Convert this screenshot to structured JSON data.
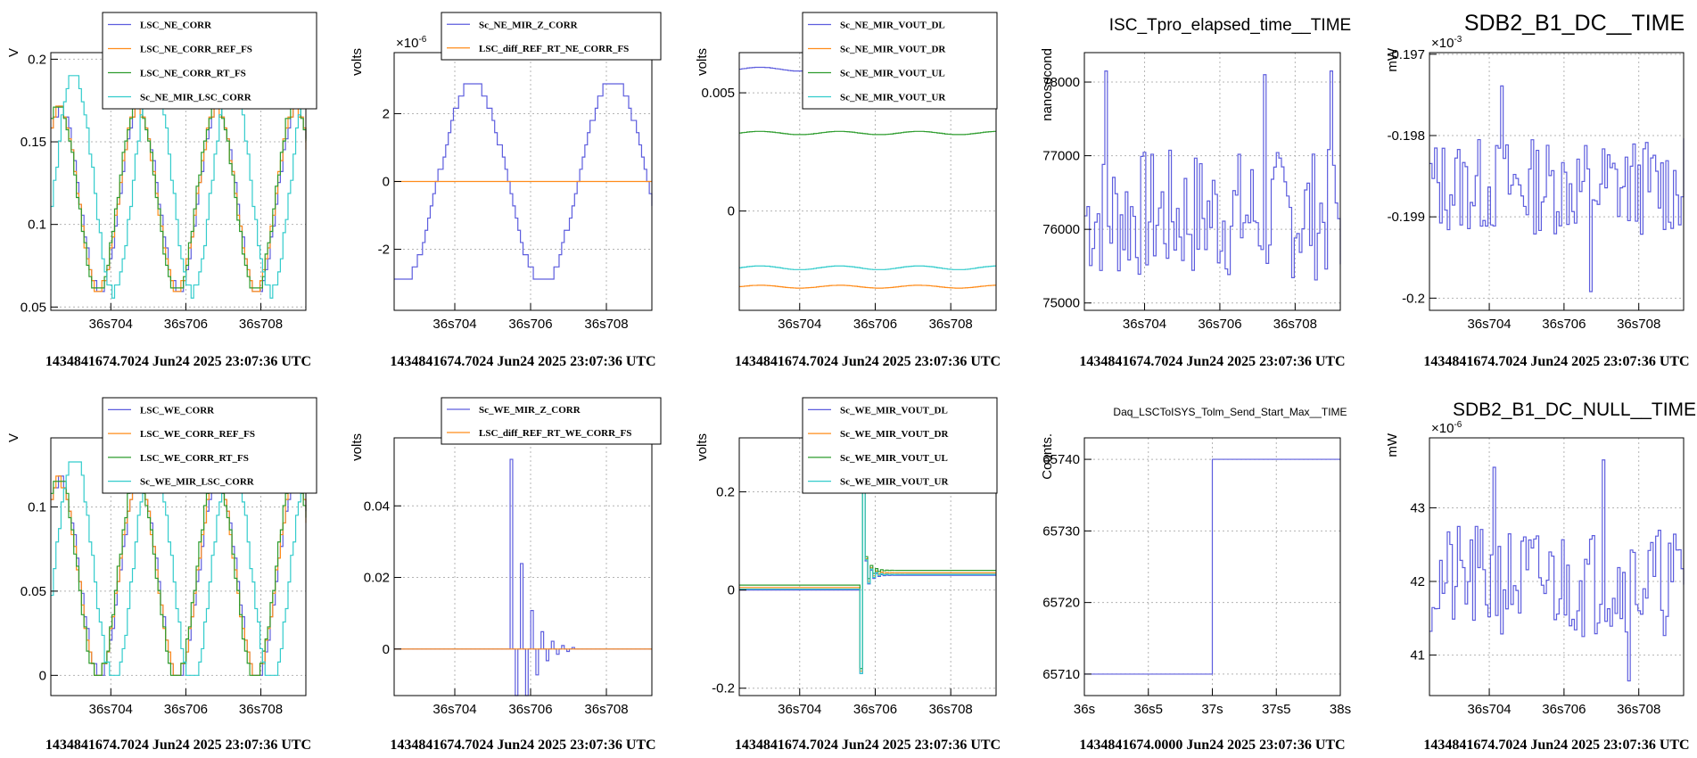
{
  "colors": {
    "blue": "#5d5dde",
    "orange": "#ff8c1a",
    "green": "#2d9c2d",
    "cyan": "#33cccc",
    "grid": "#b4b4b4"
  },
  "chart_data": [
    {
      "id": "p00",
      "type": "line",
      "step": true,
      "title": "",
      "ylabel": "V",
      "exponent": "",
      "xticks": [
        "36s704",
        "36s706",
        "36s708"
      ],
      "yticks": [
        {
          "v": 0.05,
          "t": "0.05"
        },
        {
          "v": 0.1,
          "t": "0.1"
        },
        {
          "v": 0.15,
          "t": "0.15"
        },
        {
          "v": 0.2,
          "t": "0.2"
        }
      ],
      "xlim": [
        36.7024,
        36.7092
      ],
      "ylim": [
        0.048,
        0.204
      ],
      "footer": "1434841674.7024 Jun24 2025 23:07:36 UTC",
      "series": [
        {
          "name": "LSC_NE_CORR",
          "color": "#5d5dde",
          "gen": {
            "kind": "sine",
            "base": 0.115,
            "amp": 0.055,
            "period": 0.0021,
            "phase": 0.9,
            "n": 100
          }
        },
        {
          "name": "LSC_NE_CORR_REF_FS",
          "color": "#ff8c1a",
          "gen": {
            "kind": "sine",
            "base": 0.115,
            "amp": 0.055,
            "period": 0.0021,
            "phase": 1.0,
            "n": 100
          }
        },
        {
          "name": "LSC_NE_CORR_RT_FS",
          "color": "#2d9c2d",
          "gen": {
            "kind": "sine",
            "base": 0.116,
            "amp": 0.057,
            "period": 0.0021,
            "phase": 1.05,
            "n": 100
          }
        },
        {
          "name": "Sc_NE_MIR_LSC_CORR",
          "color": "#33cccc",
          "gen": {
            "kind": "sine",
            "base": 0.125,
            "amp": 0.066,
            "period": 0.0021,
            "phase": -0.2,
            "n": 100
          }
        }
      ]
    },
    {
      "id": "p01",
      "type": "line",
      "step": true,
      "title": "",
      "ylabel": "volts",
      "exponent": "×10",
      "exponent_power": "-6",
      "xticks": [
        "36s704",
        "36s706",
        "36s708"
      ],
      "yticks": [
        {
          "v": -2,
          "t": "-2"
        },
        {
          "v": 0,
          "t": "0"
        },
        {
          "v": 2,
          "t": "2"
        }
      ],
      "xlim": [
        36.7024,
        36.7092
      ],
      "ylim": [
        -3.8,
        3.8
      ],
      "footer": "1434841674.7024 Jun24 2025 23:07:36 UTC",
      "series": [
        {
          "name": "Sc_NE_MIR_Z_CORR",
          "color": "#5d5dde",
          "gen": {
            "kind": "sine",
            "base": 0,
            "amp": 3.0,
            "period": 0.0037,
            "phase": -1.9,
            "n": 100
          }
        },
        {
          "name": "LSC_diff_REF_RT_NE_CORR_FS",
          "color": "#ff8c1a",
          "gen": {
            "kind": "const",
            "value": 0
          }
        }
      ]
    },
    {
      "id": "p02",
      "type": "line",
      "step": true,
      "title": "",
      "ylabel": "volts",
      "exponent": "",
      "xticks": [
        "36s704",
        "36s706",
        "36s708"
      ],
      "yticks": [
        {
          "v": 0,
          "t": "0"
        },
        {
          "v": 0.005,
          "t": "0.005"
        }
      ],
      "xlim": [
        36.7024,
        36.7092
      ],
      "ylim": [
        -0.0042,
        0.0067
      ],
      "footer": "1434841674.7024 Jun24 2025 23:07:36 UTC",
      "series": [
        {
          "name": "Sc_NE_MIR_VOUT_DL",
          "color": "#5d5dde",
          "gen": {
            "kind": "sine",
            "base": 0.006,
            "amp": 8e-05,
            "period": 0.0021,
            "phase": 0,
            "n": 100
          }
        },
        {
          "name": "Sc_NE_MIR_VOUT_DR",
          "color": "#ff8c1a",
          "gen": {
            "kind": "sine",
            "base": -0.0032,
            "amp": 6e-05,
            "period": 0.0021,
            "phase": 0,
            "n": 100
          }
        },
        {
          "name": "Sc_NE_MIR_VOUT_UL",
          "color": "#2d9c2d",
          "gen": {
            "kind": "sine",
            "base": 0.0033,
            "amp": 7e-05,
            "period": 0.0021,
            "phase": 0,
            "n": 100
          }
        },
        {
          "name": "Sc_NE_MIR_VOUT_UR",
          "color": "#33cccc",
          "gen": {
            "kind": "sine",
            "base": -0.0024,
            "amp": 8e-05,
            "period": 0.0021,
            "phase": 0,
            "n": 100
          }
        }
      ]
    },
    {
      "id": "p03",
      "type": "line",
      "step": true,
      "title": "ISC_Tpro_elapsed_time__TIME",
      "title_size": 19,
      "ylabel": "nanosecond",
      "exponent": "",
      "xticks": [
        "36s704",
        "36s706",
        "36s708"
      ],
      "yticks": [
        {
          "v": 75000,
          "t": "75000"
        },
        {
          "v": 76000,
          "t": "76000"
        },
        {
          "v": 77000,
          "t": "77000"
        },
        {
          "v": 78000,
          "t": "78000"
        }
      ],
      "xlim": [
        36.7024,
        36.7092
      ],
      "ylim": [
        74900,
        78400
      ],
      "footer": "1434841674.7024 Jun24 2025 23:07:36 UTC",
      "series": [
        {
          "name": "",
          "color": "#5d5dde",
          "gen": {
            "kind": "noise",
            "base": 76200,
            "amp": 900,
            "n": 100,
            "seed": 7,
            "spikes": [
              [
                8,
                78150
              ],
              [
                70,
                78100
              ],
              [
                96,
                78150
              ]
            ]
          }
        }
      ]
    },
    {
      "id": "p04",
      "type": "line",
      "step": true,
      "title": "SDB2_B1_DC__TIME",
      "title_size": 25,
      "ylabel": "mW",
      "exponent": "×10",
      "exponent_power": "-3",
      "xticks": [
        "36s704",
        "36s706",
        "36s708"
      ],
      "yticks": [
        {
          "v": -0.2,
          "t": "-0.2"
        },
        {
          "v": -0.199,
          "t": "-0.199"
        },
        {
          "v": -0.198,
          "t": "-0.198"
        },
        {
          "v": -0.197,
          "t": "-0.197"
        }
      ],
      "xlim": [
        36.7024,
        36.7092
      ],
      "ylim": [
        -0.20015,
        -0.19698
      ],
      "footer": "1434841674.7024 Jun24 2025 23:07:36 UTC",
      "series": [
        {
          "name": "",
          "color": "#5d5dde",
          "gen": {
            "kind": "noise",
            "base": -0.19862,
            "amp": 0.0006,
            "n": 100,
            "seed": 13,
            "spikes": [
              [
                28,
                -0.19739
              ],
              [
                63,
                -0.19992
              ]
            ]
          }
        }
      ]
    },
    {
      "id": "p10",
      "type": "line",
      "step": true,
      "title": "",
      "ylabel": "V",
      "exponent": "",
      "xticks": [
        "36s704",
        "36s706",
        "36s708"
      ],
      "yticks": [
        {
          "v": 0,
          "t": "0"
        },
        {
          "v": 0.05,
          "t": "0.05"
        },
        {
          "v": 0.1,
          "t": "0.1"
        }
      ],
      "xlim": [
        36.7024,
        36.7092
      ],
      "ylim": [
        -0.012,
        0.141
      ],
      "footer": "1434841674.7024 Jun24 2025 23:07:36 UTC",
      "series": [
        {
          "name": "LSC_WE_CORR",
          "color": "#5d5dde",
          "gen": {
            "kind": "sine",
            "base": 0.058,
            "amp": 0.058,
            "period": 0.0021,
            "phase": 0.9,
            "n": 100
          }
        },
        {
          "name": "LSC_WE_CORR_REF_FS",
          "color": "#ff8c1a",
          "gen": {
            "kind": "sine",
            "base": 0.058,
            "amp": 0.058,
            "period": 0.0021,
            "phase": 1.0,
            "n": 100
          }
        },
        {
          "name": "LSC_WE_CORR_RT_FS",
          "color": "#2d9c2d",
          "gen": {
            "kind": "sine",
            "base": 0.059,
            "amp": 0.06,
            "period": 0.0021,
            "phase": 1.05,
            "n": 100
          }
        },
        {
          "name": "Sc_WE_MIR_LSC_CORR",
          "color": "#33cccc",
          "gen": {
            "kind": "sine",
            "base": 0.064,
            "amp": 0.066,
            "period": 0.0021,
            "phase": -0.2,
            "n": 100
          }
        }
      ]
    },
    {
      "id": "p11",
      "type": "line",
      "step": true,
      "title": "",
      "ylabel": "volts",
      "exponent": "",
      "xticks": [
        "36s704",
        "36s706",
        "36s708"
      ],
      "yticks": [
        {
          "v": 0,
          "t": "0"
        },
        {
          "v": 0.02,
          "t": "0.02"
        },
        {
          "v": 0.04,
          "t": "0.04"
        }
      ],
      "xlim": [
        36.7024,
        36.7092
      ],
      "ylim": [
        -0.013,
        0.059
      ],
      "footer": "1434841674.7024 Jun24 2025 23:07:36 UTC",
      "series": [
        {
          "name": "Sc_WE_MIR_Z_CORR",
          "color": "#5d5dde",
          "gen": {
            "kind": "burst",
            "n": 100,
            "start": 45,
            "peak": 0.053,
            "decay": 0.55,
            "period": 3
          }
        },
        {
          "name": "LSC_diff_REF_RT_WE_CORR_FS",
          "color": "#ff8c1a",
          "gen": {
            "kind": "const",
            "value": 0
          }
        }
      ]
    },
    {
      "id": "p12",
      "type": "line",
      "step": true,
      "title": "",
      "ylabel": "volts",
      "exponent": "",
      "xticks": [
        "36s704",
        "36s706",
        "36s708"
      ],
      "yticks": [
        {
          "v": -0.2,
          "t": "-0.2"
        },
        {
          "v": 0,
          "t": "0"
        },
        {
          "v": 0.2,
          "t": "0.2"
        }
      ],
      "xlim": [
        36.7024,
        36.7092
      ],
      "ylim": [
        -0.215,
        0.31
      ],
      "footer": "1434841674.7024 Jun24 2025 23:07:36 UTC",
      "series": [
        {
          "name": "Sc_WE_MIR_VOUT_DL",
          "color": "#5d5dde",
          "gen": {
            "kind": "kick",
            "n": 100,
            "start": 47,
            "pre": 0.0,
            "post": 0.03,
            "lo": -0.17,
            "hi": 0.27
          }
        },
        {
          "name": "Sc_WE_MIR_VOUT_DR",
          "color": "#ff8c1a",
          "gen": {
            "kind": "kick",
            "n": 100,
            "start": 47,
            "pre": 0.005,
            "post": 0.035,
            "lo": -0.165,
            "hi": 0.265
          }
        },
        {
          "name": "Sc_WE_MIR_VOUT_UL",
          "color": "#2d9c2d",
          "gen": {
            "kind": "kick",
            "n": 100,
            "start": 47,
            "pre": 0.01,
            "post": 0.04,
            "lo": -0.16,
            "hi": 0.26
          }
        },
        {
          "name": "Sc_WE_MIR_VOUT_UR",
          "color": "#33cccc",
          "gen": {
            "kind": "kick",
            "n": 100,
            "start": 47,
            "pre": 0.002,
            "post": 0.032,
            "lo": -0.17,
            "hi": 0.275
          }
        }
      ]
    },
    {
      "id": "p13",
      "type": "line",
      "step": true,
      "title": "Daq_LSCToISYS_Tolm_Send_Start_Max__TIME",
      "title_size": 12,
      "ylabel": "Counts.",
      "exponent": "",
      "xticks": [
        "36s",
        "36s5",
        "37s",
        "37s5",
        "38s"
      ],
      "xtick_vals": [
        36,
        36.5,
        37,
        37.5,
        38
      ],
      "yticks": [
        {
          "v": 65710,
          "t": "65710"
        },
        {
          "v": 65720,
          "t": "65720"
        },
        {
          "v": 65730,
          "t": "65730"
        },
        {
          "v": 65740,
          "t": "65740"
        }
      ],
      "xlim": [
        36,
        38
      ],
      "ylim": [
        65707,
        65743
      ],
      "footer": "1434841674.0000 Jun24 2025 23:07:36 UTC",
      "series": [
        {
          "name": "",
          "color": "#5d5dde",
          "points": [
            [
              36,
              65710
            ],
            [
              37,
              65710
            ],
            [
              37,
              65740
            ],
            [
              38,
              65740
            ]
          ]
        }
      ]
    },
    {
      "id": "p14",
      "type": "line",
      "step": true,
      "title": "SDB2_B1_DC_NULL__TIME",
      "title_size": 21,
      "ylabel": "mW",
      "exponent": "×10",
      "exponent_power": "-6",
      "xticks": [
        "36s704",
        "36s706",
        "36s708"
      ],
      "yticks": [
        {
          "v": 41,
          "t": "41"
        },
        {
          "v": 42,
          "t": "42"
        },
        {
          "v": 43,
          "t": "43"
        }
      ],
      "xlim": [
        36.7024,
        36.7092
      ],
      "ylim": [
        40.45,
        43.95
      ],
      "footer": "1434841674.7024 Jun24 2025 23:07:36 UTC",
      "series": [
        {
          "name": "",
          "color": "#5d5dde",
          "gen": {
            "kind": "noise",
            "base": 42.0,
            "amp": 0.75,
            "n": 100,
            "seed": 21,
            "spikes": [
              [
                25,
                43.55
              ],
              [
                68,
                43.65
              ],
              [
                78,
                40.65
              ]
            ]
          }
        }
      ]
    }
  ]
}
